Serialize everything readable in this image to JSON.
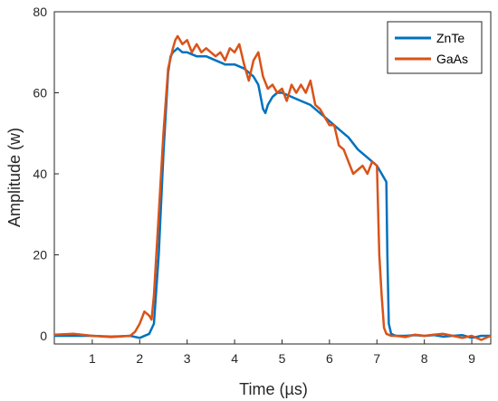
{
  "chart_data": {
    "type": "line",
    "title": "",
    "xlabel": "Time (µs)",
    "ylabel": "Amplitude  (w)",
    "xlim": [
      0.2,
      9.4
    ],
    "ylim": [
      -2,
      80
    ],
    "xticks": [
      1,
      2,
      3,
      4,
      5,
      6,
      7,
      8,
      9
    ],
    "yticks": [
      0,
      20,
      40,
      60,
      80
    ],
    "grid": false,
    "legend_position": "top-right",
    "series": [
      {
        "name": "ZnTe",
        "color": "#0072BD",
        "x": [
          0.2,
          0.6,
          1.0,
          1.4,
          1.8,
          2.0,
          2.2,
          2.3,
          2.4,
          2.5,
          2.6,
          2.65,
          2.7,
          2.8,
          2.9,
          3.0,
          3.2,
          3.4,
          3.6,
          3.8,
          4.0,
          4.2,
          4.4,
          4.5,
          4.6,
          4.65,
          4.7,
          4.8,
          4.9,
          5.0,
          5.2,
          5.4,
          5.6,
          5.8,
          6.0,
          6.2,
          6.4,
          6.6,
          6.8,
          7.0,
          7.1,
          7.15,
          7.2,
          7.22,
          7.25,
          7.3,
          7.4,
          7.6,
          7.8,
          8.0,
          8.2,
          8.4,
          8.6,
          8.8,
          9.0,
          9.2,
          9.4
        ],
        "y": [
          0,
          0,
          0,
          -0.2,
          0,
          -0.5,
          0.5,
          3,
          20,
          45,
          65,
          69,
          70,
          71,
          70,
          70,
          69,
          69,
          68,
          67,
          67,
          66,
          64,
          62,
          56,
          55,
          57,
          59,
          60,
          60,
          59,
          58,
          57,
          55,
          53,
          51,
          49,
          46,
          44,
          42,
          40,
          39,
          38,
          20,
          3,
          0.5,
          0,
          0,
          0.2,
          0,
          0.2,
          -0.2,
          0,
          0.2,
          -0.5,
          0,
          0
        ]
      },
      {
        "name": "GaAs",
        "color": "#D95319",
        "x": [
          0.2,
          0.6,
          1.0,
          1.4,
          1.8,
          1.9,
          2.0,
          2.1,
          2.2,
          2.25,
          2.3,
          2.4,
          2.5,
          2.6,
          2.7,
          2.75,
          2.8,
          2.9,
          3.0,
          3.1,
          3.2,
          3.3,
          3.4,
          3.5,
          3.6,
          3.7,
          3.8,
          3.9,
          4.0,
          4.1,
          4.2,
          4.3,
          4.4,
          4.5,
          4.6,
          4.7,
          4.8,
          4.9,
          5.0,
          5.1,
          5.2,
          5.3,
          5.4,
          5.5,
          5.6,
          5.7,
          5.8,
          5.9,
          6.0,
          6.1,
          6.2,
          6.3,
          6.4,
          6.5,
          6.6,
          6.7,
          6.8,
          6.9,
          7.0,
          7.05,
          7.1,
          7.15,
          7.2,
          7.3,
          7.4,
          7.6,
          7.8,
          8.0,
          8.2,
          8.4,
          8.6,
          8.8,
          9.0,
          9.2,
          9.4
        ],
        "y": [
          0.3,
          0.5,
          0,
          -0.3,
          0,
          1,
          3,
          6,
          5,
          4,
          10,
          30,
          50,
          66,
          71,
          73,
          74,
          72,
          73,
          70,
          72,
          70,
          71,
          70,
          69,
          70,
          68,
          71,
          70,
          72,
          67,
          63,
          68,
          70,
          64,
          61,
          62,
          60,
          61,
          58,
          62,
          60,
          62,
          60,
          63,
          57,
          56,
          54,
          52,
          52,
          47,
          46,
          43,
          40,
          41,
          42,
          40,
          43,
          42,
          20,
          10,
          2,
          0.5,
          0,
          0,
          -0.3,
          0.3,
          0,
          0.3,
          0.5,
          0,
          -0.5,
          0,
          -1,
          0
        ]
      }
    ]
  }
}
